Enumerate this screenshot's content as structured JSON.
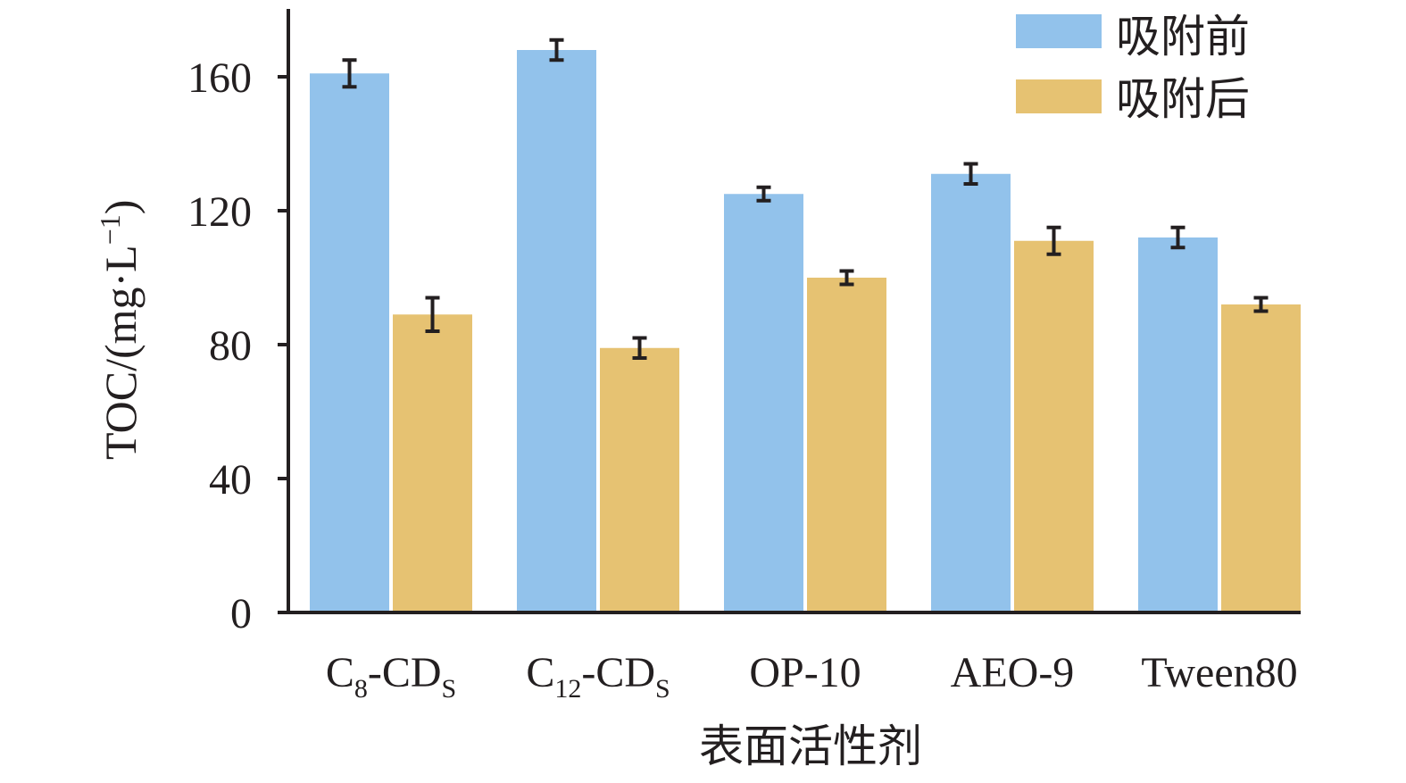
{
  "chart_data": {
    "type": "bar",
    "categories": [
      {
        "main": "C",
        "sub": "8",
        "rest": "-CD",
        "sub2": "S"
      },
      {
        "main": "C",
        "sub": "12",
        "rest": "-CD",
        "sub2": "S"
      },
      {
        "main": "OP-10",
        "sub": "",
        "rest": "",
        "sub2": ""
      },
      {
        "main": "AEO-9",
        "sub": "",
        "rest": "",
        "sub2": ""
      },
      {
        "main": "Tween80",
        "sub": "",
        "rest": "",
        "sub2": ""
      }
    ],
    "series": [
      {
        "name": "吸附前",
        "color": "#92c2eb",
        "values": [
          161,
          168,
          125,
          131,
          112
        ],
        "errors": [
          4,
          3,
          2,
          3,
          3
        ]
      },
      {
        "name": "吸附后",
        "color": "#e6c272",
        "values": [
          89,
          79,
          100,
          111,
          92
        ],
        "errors": [
          5,
          3,
          2,
          4,
          2
        ]
      }
    ],
    "xlabel": "表面活性剂",
    "ylabel": "TOC/(mg·L",
    "ylabel_sup": "−1",
    "ylabel_close": ")",
    "ylim": [
      0,
      180
    ],
    "yticks": [
      "0",
      "40",
      "80",
      "120",
      "160"
    ],
    "grid": false,
    "legend_position": "top-right",
    "error_bar_color": "#231f20"
  }
}
